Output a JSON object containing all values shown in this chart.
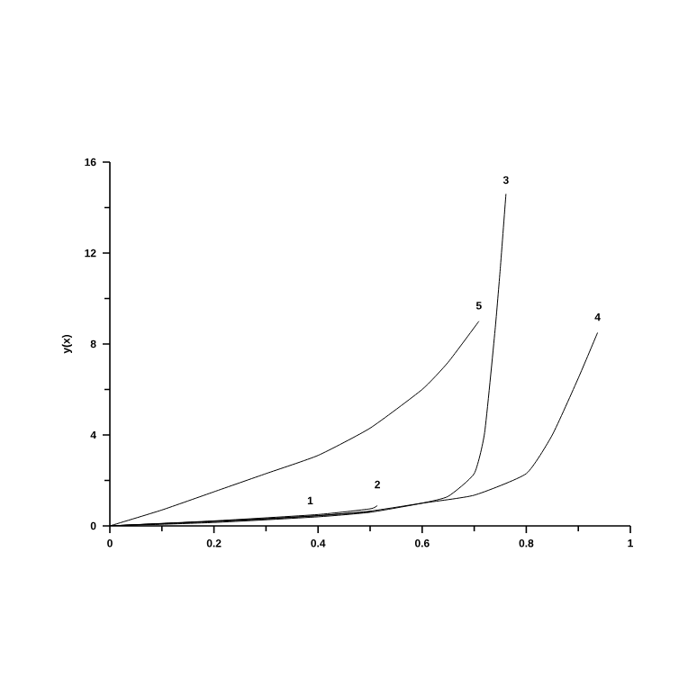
{
  "chart_data": {
    "type": "line",
    "ylabel": "y(x)",
    "xlim": [
      0,
      1
    ],
    "ylim": [
      0,
      16
    ],
    "xticks": [
      0,
      0.2,
      0.4,
      0.6,
      0.8,
      1
    ],
    "yticks": [
      0,
      4,
      8,
      12,
      16
    ],
    "grid": false,
    "legend": false,
    "marker": "none",
    "line_style": "solid",
    "series": [
      {
        "name": "1",
        "color": "#000000",
        "x": [
          0,
          0.1,
          0.2,
          0.3,
          0.4,
          0.5
        ],
        "values": [
          0,
          0.1,
          0.2,
          0.3,
          0.45,
          0.62
        ]
      },
      {
        "name": "2",
        "color": "#000000",
        "x": [
          0,
          0.2,
          0.4,
          0.5,
          0.514
        ],
        "values": [
          0,
          0.22,
          0.5,
          0.75,
          0.9
        ]
      },
      {
        "name": "3",
        "color": "#000000",
        "x": [
          0,
          0.2,
          0.4,
          0.5,
          0.6,
          0.65,
          0.7,
          0.72,
          0.74,
          0.75,
          0.761
        ],
        "values": [
          0,
          0.15,
          0.4,
          0.6,
          1.0,
          1.3,
          2.3,
          4.1,
          8.6,
          11.3,
          14.6
        ]
      },
      {
        "name": "4",
        "color": "#000000",
        "x": [
          0,
          0.2,
          0.4,
          0.5,
          0.6,
          0.7,
          0.8,
          0.85,
          0.9,
          0.937
        ],
        "values": [
          0,
          0.2,
          0.45,
          0.65,
          1.0,
          1.35,
          2.3,
          4.0,
          6.5,
          8.5
        ]
      },
      {
        "name": "5",
        "color": "#000000",
        "x": [
          0,
          0.1,
          0.2,
          0.3,
          0.4,
          0.5,
          0.6,
          0.65,
          0.709
        ],
        "values": [
          0,
          0.7,
          1.5,
          2.3,
          3.1,
          4.3,
          6.0,
          7.2,
          9.0
        ]
      }
    ]
  }
}
